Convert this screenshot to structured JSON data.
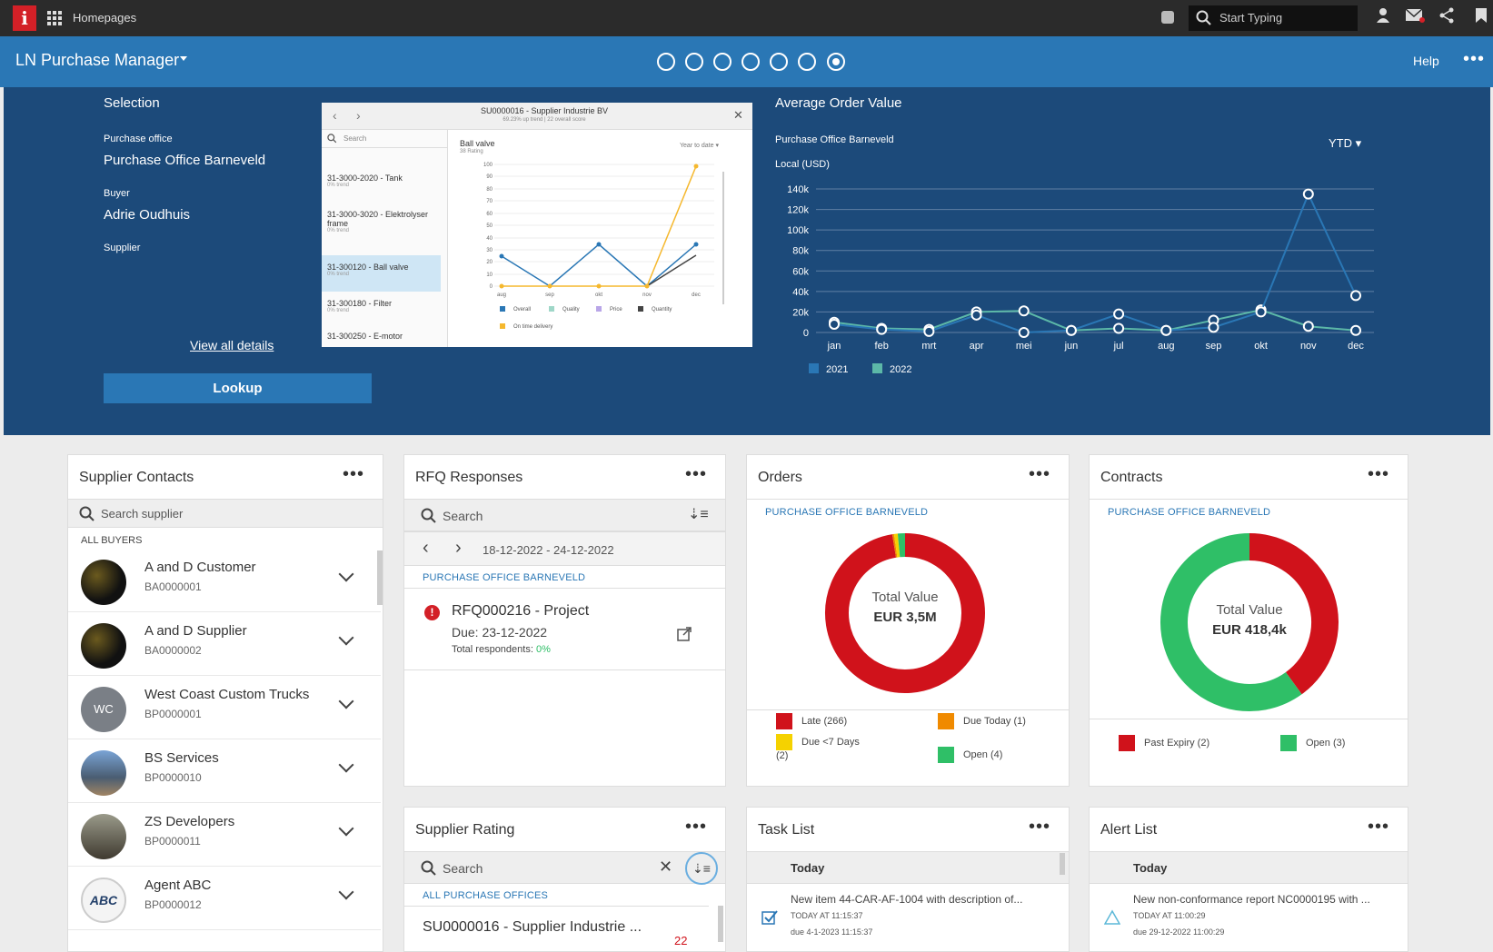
{
  "topbar": {
    "homepages": "Homepages",
    "search_placeholder": "Start Typing"
  },
  "header": {
    "title": "LN Purchase Manager",
    "help": "Help"
  },
  "selection": {
    "heading": "Selection",
    "purchase_office_label": "Purchase office",
    "purchase_office_value": "Purchase Office Barneveld",
    "buyer_label": "Buyer",
    "buyer_value": "Adrie Oudhuis",
    "supplier_label": "Supplier",
    "view_all": "View all details",
    "lookup": "Lookup"
  },
  "preview": {
    "title": "SU0000016 - Supplier Industrie BV",
    "subtitle": "69.23% up trend | 22 overall score",
    "search": "Search",
    "items": [
      {
        "label": "31-3000-2020 - Tank",
        "sub": "0% trend"
      },
      {
        "label": "31-3000-3020 - Elektrolyser frame",
        "sub": "0% trend"
      },
      {
        "label": "31-300120 - Ball valve",
        "sub": "0% trend"
      },
      {
        "label": "31-300180 - Filter",
        "sub": "0% trend"
      },
      {
        "label": "31-300250 - E-motor",
        "sub": ""
      }
    ],
    "chart_title": "Ball valve",
    "chart_sub": "38 Rating",
    "period": "Year to date",
    "legend": [
      "Overall",
      "Quality",
      "Price",
      "Quantity",
      "On time delivery"
    ]
  },
  "aov": {
    "heading": "Average Order Value",
    "office": "Purchase Office Barneveld",
    "currency": "Local (USD)",
    "period": "YTD"
  },
  "chart_data": {
    "type": "line",
    "title": "Average Order Value",
    "categories": [
      "jan",
      "feb",
      "mrt",
      "apr",
      "mei",
      "jun",
      "jul",
      "aug",
      "sep",
      "okt",
      "nov",
      "dec"
    ],
    "yticks": [
      "0",
      "20k",
      "40k",
      "60k",
      "80k",
      "100k",
      "120k",
      "140k"
    ],
    "ylim": [
      0,
      140000
    ],
    "series": [
      {
        "name": "2021",
        "color": "#2a77b5",
        "values": [
          8000,
          3000,
          1000,
          17000,
          0,
          2000,
          18000,
          2000,
          5000,
          20000,
          135000,
          36000
        ]
      },
      {
        "name": "2022",
        "color": "#5cb8a8",
        "values": [
          10000,
          4000,
          3000,
          20000,
          21000,
          2000,
          4000,
          2000,
          12000,
          22000,
          6000,
          2000
        ]
      }
    ],
    "legend_position": "bottom-left"
  },
  "supplier_contacts": {
    "title": "Supplier Contacts",
    "search_placeholder": "Search supplier",
    "group": "ALL BUYERS",
    "items": [
      {
        "name": "A and D Customer",
        "code": "BA0000001",
        "avatar": ""
      },
      {
        "name": "A and D Supplier",
        "code": "BA0000002",
        "avatar": ""
      },
      {
        "name": "West Coast Custom Trucks",
        "code": "BP0000001",
        "avatar": "WC"
      },
      {
        "name": "BS Services",
        "code": "BP0000010",
        "avatar": ""
      },
      {
        "name": "ZS Developers",
        "code": "BP0000011",
        "avatar": ""
      },
      {
        "name": "Agent ABC",
        "code": "BP0000012",
        "avatar": "ABC"
      }
    ]
  },
  "rfq": {
    "title": "RFQ Responses",
    "search": "Search",
    "date_range": "18-12-2022 - 24-12-2022",
    "office": "PURCHASE OFFICE BARNEVELD",
    "item_title": "RFQ000216 - Project",
    "item_due": "Due: 23-12-2022",
    "item_resp_label": "Total respondents:",
    "item_resp_value": "0%"
  },
  "orders": {
    "title": "Orders",
    "office": "PURCHASE OFFICE BARNEVELD",
    "center_label": "Total Value",
    "center_value": "EUR 3,5M",
    "legend": [
      {
        "label": "Late (266)",
        "color": "#d0121b"
      },
      {
        "label": "Due Today (1)",
        "color": "#f08a00"
      },
      {
        "label": "Due <7 Days",
        "color": "#f5d200"
      },
      {
        "label": "(2)",
        "color": ""
      },
      {
        "label": "Open (4)",
        "color": "#2fbf67"
      }
    ],
    "donut": [
      {
        "name": "Late",
        "value": 266
      },
      {
        "name": "Due Today",
        "value": 1
      },
      {
        "name": "Due <7 Days",
        "value": 2
      },
      {
        "name": "Open",
        "value": 4
      }
    ]
  },
  "contracts": {
    "title": "Contracts",
    "office": "PURCHASE OFFICE BARNEVELD",
    "center_label": "Total Value",
    "center_value": "EUR 418,4k",
    "legend": [
      {
        "label": "Past Expiry (2)",
        "color": "#d0121b"
      },
      {
        "label": "Open (3)",
        "color": "#2fbf67"
      }
    ],
    "donut": [
      {
        "name": "Past Expiry",
        "value": 2
      },
      {
        "name": "Open",
        "value": 3
      }
    ]
  },
  "supplier_rating": {
    "title": "Supplier Rating",
    "search": "Search",
    "office": "ALL PURCHASE OFFICES",
    "item": "SU0000016 - Supplier Industrie ...",
    "score": "22"
  },
  "task_list": {
    "title": "Task List",
    "group": "Today",
    "item_text": "New item 44-CAR-AF-1004 with description of...",
    "item_time": "TODAY AT 11:15:37",
    "item_due": "due 4-1-2023 11:15:37"
  },
  "alert_list": {
    "title": "Alert List",
    "group": "Today",
    "item_text": "New non-conformance report NC0000195 with ...",
    "item_time": "TODAY AT 11:00:29",
    "item_due": "due 29-12-2022 11:00:29"
  }
}
